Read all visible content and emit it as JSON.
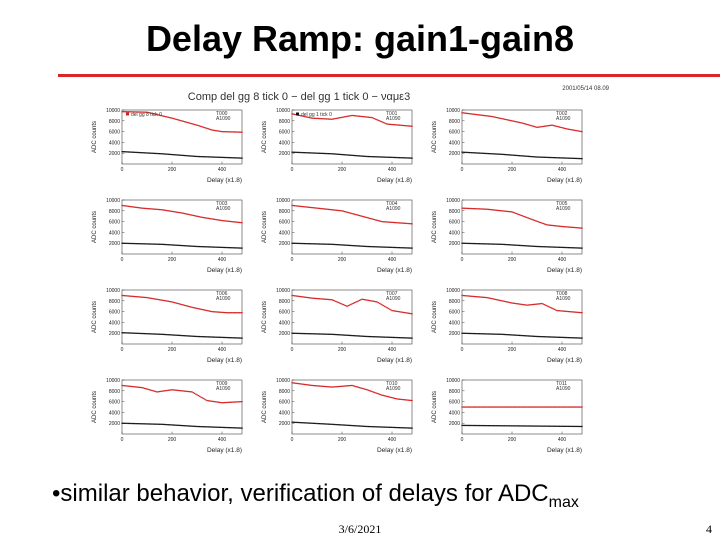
{
  "slide": {
    "title": "Delay Ramp: gain1-gain8",
    "bullet_text": "similar behavior, verification of delays for ADC",
    "bullet_sub": "max",
    "date": "3/6/2021",
    "page": "4",
    "accent_color": "#d9262b"
  },
  "chart_data": {
    "type": "scatter",
    "title": "Comp del gg 8 tick 0 − del gg 1 tick 0 − ναμε3",
    "timestamp": "2001/05/14  08.09",
    "xlabel": "Delay (x1.8)",
    "ylabel": "ADC counts",
    "xlim": [
      0,
      480
    ],
    "ylim": [
      0,
      10000
    ],
    "xticks": [
      "0",
      "200",
      "400"
    ],
    "yticks": [
      "2000",
      "4000",
      "6000",
      "8000",
      "10000"
    ],
    "series_colors": {
      "gain8": "#d42020",
      "gain1": "#111111"
    },
    "legend": {
      "gain8": "del gg 8 tick 0",
      "gain1": "del gg 1 tick 0"
    },
    "panels": [
      {
        "label": "T000",
        "sub": "A1090",
        "gain8": [
          [
            0,
            9700
          ],
          [
            100,
            9600
          ],
          [
            200,
            8500
          ],
          [
            300,
            7200
          ],
          [
            360,
            6300
          ],
          [
            400,
            6000
          ],
          [
            480,
            5900
          ]
        ],
        "gain1": [
          [
            0,
            2300
          ],
          [
            160,
            1900
          ],
          [
            300,
            1400
          ],
          [
            480,
            1100
          ]
        ]
      },
      {
        "label": "T001",
        "sub": "A1090",
        "gain8": [
          [
            0,
            9300
          ],
          [
            80,
            8500
          ],
          [
            160,
            8300
          ],
          [
            240,
            9000
          ],
          [
            320,
            8600
          ],
          [
            380,
            7400
          ],
          [
            480,
            7000
          ]
        ],
        "gain1": [
          [
            0,
            2200
          ],
          [
            160,
            1900
          ],
          [
            300,
            1400
          ],
          [
            480,
            1100
          ]
        ]
      },
      {
        "label": "T002",
        "sub": "A1090",
        "gain8": [
          [
            0,
            9500
          ],
          [
            120,
            8800
          ],
          [
            240,
            7600
          ],
          [
            300,
            6800
          ],
          [
            360,
            7200
          ],
          [
            420,
            6500
          ],
          [
            480,
            6000
          ]
        ],
        "gain1": [
          [
            0,
            2200
          ],
          [
            160,
            1800
          ],
          [
            300,
            1300
          ],
          [
            480,
            1000
          ]
        ]
      },
      {
        "label": "T003",
        "sub": "A1090",
        "gain8": [
          [
            0,
            9000
          ],
          [
            80,
            8500
          ],
          [
            160,
            8200
          ],
          [
            240,
            7600
          ],
          [
            320,
            6800
          ],
          [
            400,
            6200
          ],
          [
            480,
            5800
          ]
        ],
        "gain1": [
          [
            0,
            2000
          ],
          [
            160,
            1800
          ],
          [
            300,
            1400
          ],
          [
            480,
            1100
          ]
        ]
      },
      {
        "label": "T004",
        "sub": "A1090",
        "gain8": [
          [
            0,
            9000
          ],
          [
            100,
            8500
          ],
          [
            200,
            8000
          ],
          [
            280,
            7000
          ],
          [
            360,
            6000
          ],
          [
            420,
            5800
          ],
          [
            480,
            5600
          ]
        ],
        "gain1": [
          [
            0,
            2000
          ],
          [
            160,
            1800
          ],
          [
            300,
            1400
          ],
          [
            480,
            1100
          ]
        ]
      },
      {
        "label": "T005",
        "sub": "A1090",
        "gain8": [
          [
            0,
            8500
          ],
          [
            100,
            8300
          ],
          [
            200,
            7800
          ],
          [
            280,
            6400
          ],
          [
            340,
            5400
          ],
          [
            400,
            5100
          ],
          [
            480,
            4800
          ]
        ],
        "gain1": [
          [
            0,
            2000
          ],
          [
            160,
            1800
          ],
          [
            300,
            1400
          ],
          [
            480,
            1100
          ]
        ]
      },
      {
        "label": "T006",
        "sub": "A1090",
        "gain8": [
          [
            0,
            9000
          ],
          [
            100,
            8600
          ],
          [
            200,
            7800
          ],
          [
            280,
            6800
          ],
          [
            360,
            6000
          ],
          [
            420,
            5800
          ],
          [
            480,
            5800
          ]
        ],
        "gain1": [
          [
            0,
            2100
          ],
          [
            160,
            1800
          ],
          [
            300,
            1400
          ],
          [
            480,
            1100
          ]
        ]
      },
      {
        "label": "T007",
        "sub": "A1090",
        "gain8": [
          [
            0,
            9000
          ],
          [
            80,
            8500
          ],
          [
            160,
            8200
          ],
          [
            220,
            7000
          ],
          [
            280,
            8300
          ],
          [
            340,
            7800
          ],
          [
            400,
            6200
          ],
          [
            480,
            5600
          ]
        ],
        "gain1": [
          [
            0,
            2000
          ],
          [
            160,
            1800
          ],
          [
            300,
            1400
          ],
          [
            480,
            1100
          ]
        ]
      },
      {
        "label": "T008",
        "sub": "A1090",
        "gain8": [
          [
            0,
            9000
          ],
          [
            100,
            8600
          ],
          [
            200,
            7600
          ],
          [
            260,
            7200
          ],
          [
            320,
            7500
          ],
          [
            380,
            6200
          ],
          [
            480,
            5800
          ]
        ],
        "gain1": [
          [
            0,
            2000
          ],
          [
            160,
            1800
          ],
          [
            300,
            1400
          ],
          [
            480,
            1100
          ]
        ]
      },
      {
        "label": "T009",
        "sub": "A1090",
        "gain8": [
          [
            0,
            9000
          ],
          [
            80,
            8600
          ],
          [
            140,
            7800
          ],
          [
            200,
            8200
          ],
          [
            280,
            7800
          ],
          [
            340,
            6200
          ],
          [
            400,
            5800
          ],
          [
            480,
            6000
          ]
        ],
        "gain1": [
          [
            0,
            2000
          ],
          [
            160,
            1800
          ],
          [
            300,
            1400
          ],
          [
            480,
            1100
          ]
        ]
      },
      {
        "label": "T010",
        "sub": "A1090",
        "gain8": [
          [
            0,
            9500
          ],
          [
            80,
            9000
          ],
          [
            160,
            8700
          ],
          [
            240,
            9000
          ],
          [
            300,
            8200
          ],
          [
            360,
            7200
          ],
          [
            420,
            6500
          ],
          [
            480,
            6200
          ]
        ],
        "gain1": [
          [
            0,
            2200
          ],
          [
            160,
            1800
          ],
          [
            300,
            1400
          ],
          [
            480,
            1100
          ]
        ]
      },
      {
        "label": "T011",
        "sub": "A1090",
        "gain8": [
          [
            0,
            5000
          ],
          [
            240,
            5000
          ],
          [
            480,
            5000
          ]
        ],
        "gain1": [
          [
            0,
            1600
          ],
          [
            240,
            1500
          ],
          [
            480,
            1400
          ]
        ]
      }
    ]
  }
}
